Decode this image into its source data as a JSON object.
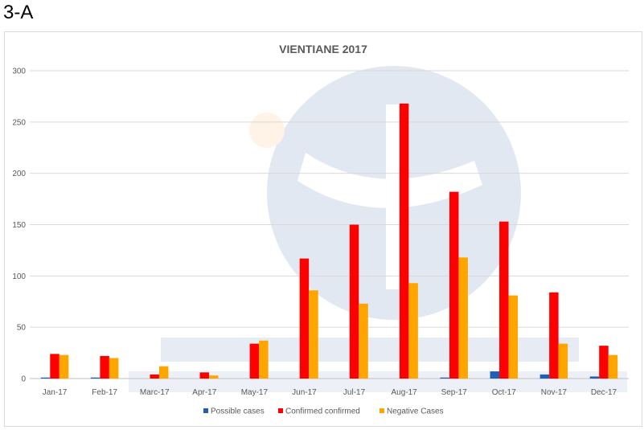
{
  "panel_label": "3-A",
  "chart_data": {
    "type": "bar",
    "title": "VIENTIANE 2017",
    "xlabel": "",
    "ylabel": "",
    "ylim": [
      0,
      300
    ],
    "yticks": [
      0,
      50,
      100,
      150,
      200,
      250,
      300
    ],
    "grid": true,
    "legend_position": "bottom",
    "categories": [
      "Jan-17",
      "Feb-17",
      "Marc-17",
      "Apr-17",
      "May-17",
      "Jun-17",
      "Jul-17",
      "Aug-17",
      "Sep-17",
      "Oct-17",
      "Nov-17",
      "Dec-17"
    ],
    "series": [
      {
        "name": "Possible cases",
        "color": "#1f5fb4",
        "values": [
          1,
          1,
          0,
          0,
          0,
          0,
          0,
          0,
          1,
          7,
          4,
          2
        ]
      },
      {
        "name": "Confirmed confirmed",
        "color": "#ff0000",
        "values": [
          24,
          22,
          4,
          6,
          34,
          117,
          150,
          268,
          182,
          153,
          84,
          32
        ]
      },
      {
        "name": "Negative Cases",
        "color": "#ffa500",
        "values": [
          23,
          20,
          12,
          3,
          37,
          86,
          73,
          93,
          118,
          81,
          34,
          23
        ]
      }
    ]
  }
}
